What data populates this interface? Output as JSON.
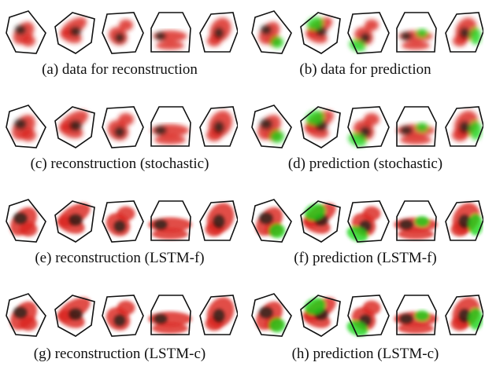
{
  "figure": {
    "panels": [
      {
        "caption": "(a)  data for reconstruction",
        "kind": "data",
        "green": false
      },
      {
        "caption": "(b)  data for prediction",
        "kind": "data",
        "green": true
      },
      {
        "caption": "(c)  reconstruction (stochastic)",
        "kind": "stochastic",
        "green": false
      },
      {
        "caption": "(d)  prediction (stochastic)",
        "kind": "stochastic",
        "green": true
      },
      {
        "caption": "(e)  reconstruction (LSTM-f)",
        "kind": "lstm",
        "green": false
      },
      {
        "caption": "(f)  prediction (LSTM-f)",
        "kind": "lstm",
        "green": true
      },
      {
        "caption": "(g)  reconstruction (LSTM-c)",
        "kind": "lstm",
        "green": false
      },
      {
        "caption": "(h)  prediction (LSTM-c)",
        "kind": "lstm",
        "green": true
      }
    ],
    "colors": {
      "red": "#d9231d",
      "green": "#19d619",
      "black": "#1a1a1a",
      "outline": "#111111"
    }
  }
}
